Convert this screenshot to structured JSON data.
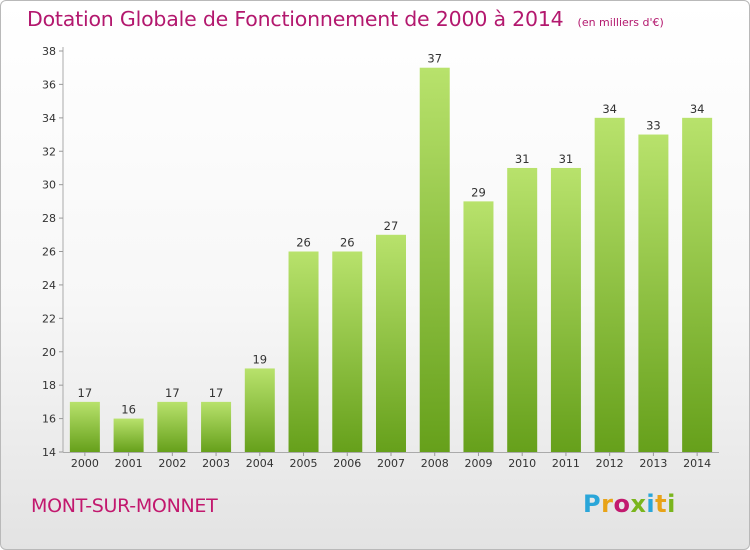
{
  "title": "Dotation Globale de Fonctionnement de 2000 à 2014",
  "unit_note": "(en milliers d'€)",
  "commune": "MONT-SUR-MONNET",
  "logo": {
    "letters": [
      "P",
      "r",
      "o",
      "x",
      "i",
      "t",
      "i"
    ],
    "colors": [
      "#2aa6d9",
      "#e8a317",
      "#c21a6f",
      "#7ab51d",
      "#2aa6d9",
      "#e8a317",
      "#7ab51d"
    ]
  },
  "colors": {
    "bar_light": "#b6e06a",
    "bar_dark": "#6aa21c",
    "title": "#b3186e"
  },
  "chart_data": {
    "type": "bar",
    "title": "Dotation Globale de Fonctionnement de 2000 à 2014",
    "subtitle": "(en milliers d'€)",
    "categories": [
      "2000",
      "2001",
      "2002",
      "2003",
      "2004",
      "2005",
      "2006",
      "2007",
      "2008",
      "2009",
      "2010",
      "2011",
      "2012",
      "2013",
      "2014"
    ],
    "values": [
      17,
      16,
      17,
      17,
      19,
      26,
      26,
      27,
      37,
      29,
      31,
      31,
      34,
      33,
      34
    ],
    "ylim": [
      14,
      38
    ],
    "yticks": [
      14,
      16,
      18,
      20,
      22,
      24,
      26,
      28,
      30,
      32,
      34,
      36,
      38
    ],
    "grid": false,
    "data_labels": true
  }
}
